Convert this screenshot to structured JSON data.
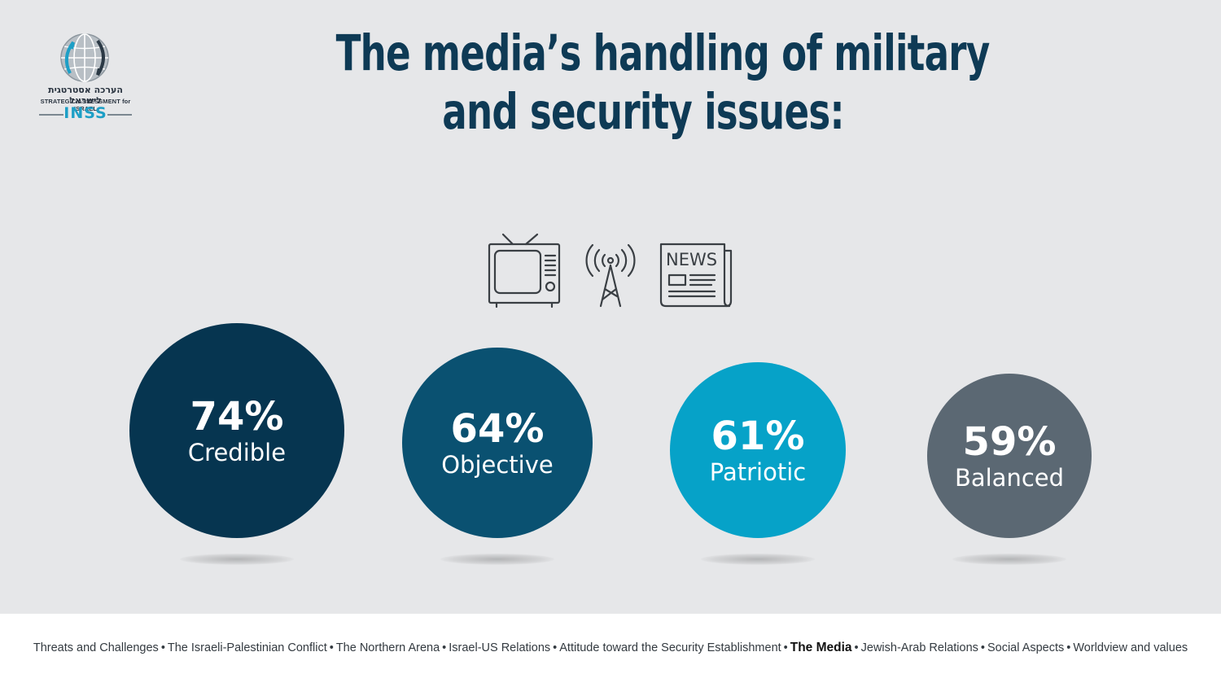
{
  "logo": {
    "hebrew": "הערכה אסטרטגית לישראל",
    "english": "STRATEGIC ASSESSMENT for ISRAEL",
    "brand": "INSS"
  },
  "title": {
    "line1": "The media’s handling of military",
    "line2": "and security issues:"
  },
  "icons": [
    "tv-icon",
    "broadcast-antenna-icon",
    "newspaper-icon"
  ],
  "newspaper_label": "NEWS",
  "chart_data": {
    "type": "bubble",
    "unit": "%",
    "categories": [
      "Credible",
      "Objective",
      "Patriotic",
      "Balanced"
    ],
    "values": [
      74,
      64,
      61,
      59
    ],
    "labels": [
      "74%",
      "64%",
      "61%",
      "59%"
    ],
    "colors": [
      "#063550",
      "#0a5171",
      "#06a2c8",
      "#5b6873"
    ]
  },
  "footer": {
    "items": [
      {
        "label": "Threats and Challenges",
        "active": false
      },
      {
        "label": "The Israeli-Palestinian Conflict",
        "active": false
      },
      {
        "label": "The Northern  Arena",
        "active": false
      },
      {
        "label": "Israel-US Relations",
        "active": false
      },
      {
        "label": "Attitude toward the Security Establishment",
        "active": false
      },
      {
        "label": "The Media",
        "active": true
      },
      {
        "label": "Jewish-Arab Relations",
        "active": false
      },
      {
        "label": "Social Aspects",
        "active": false
      },
      {
        "label": "Worldview and values",
        "active": false
      }
    ]
  }
}
